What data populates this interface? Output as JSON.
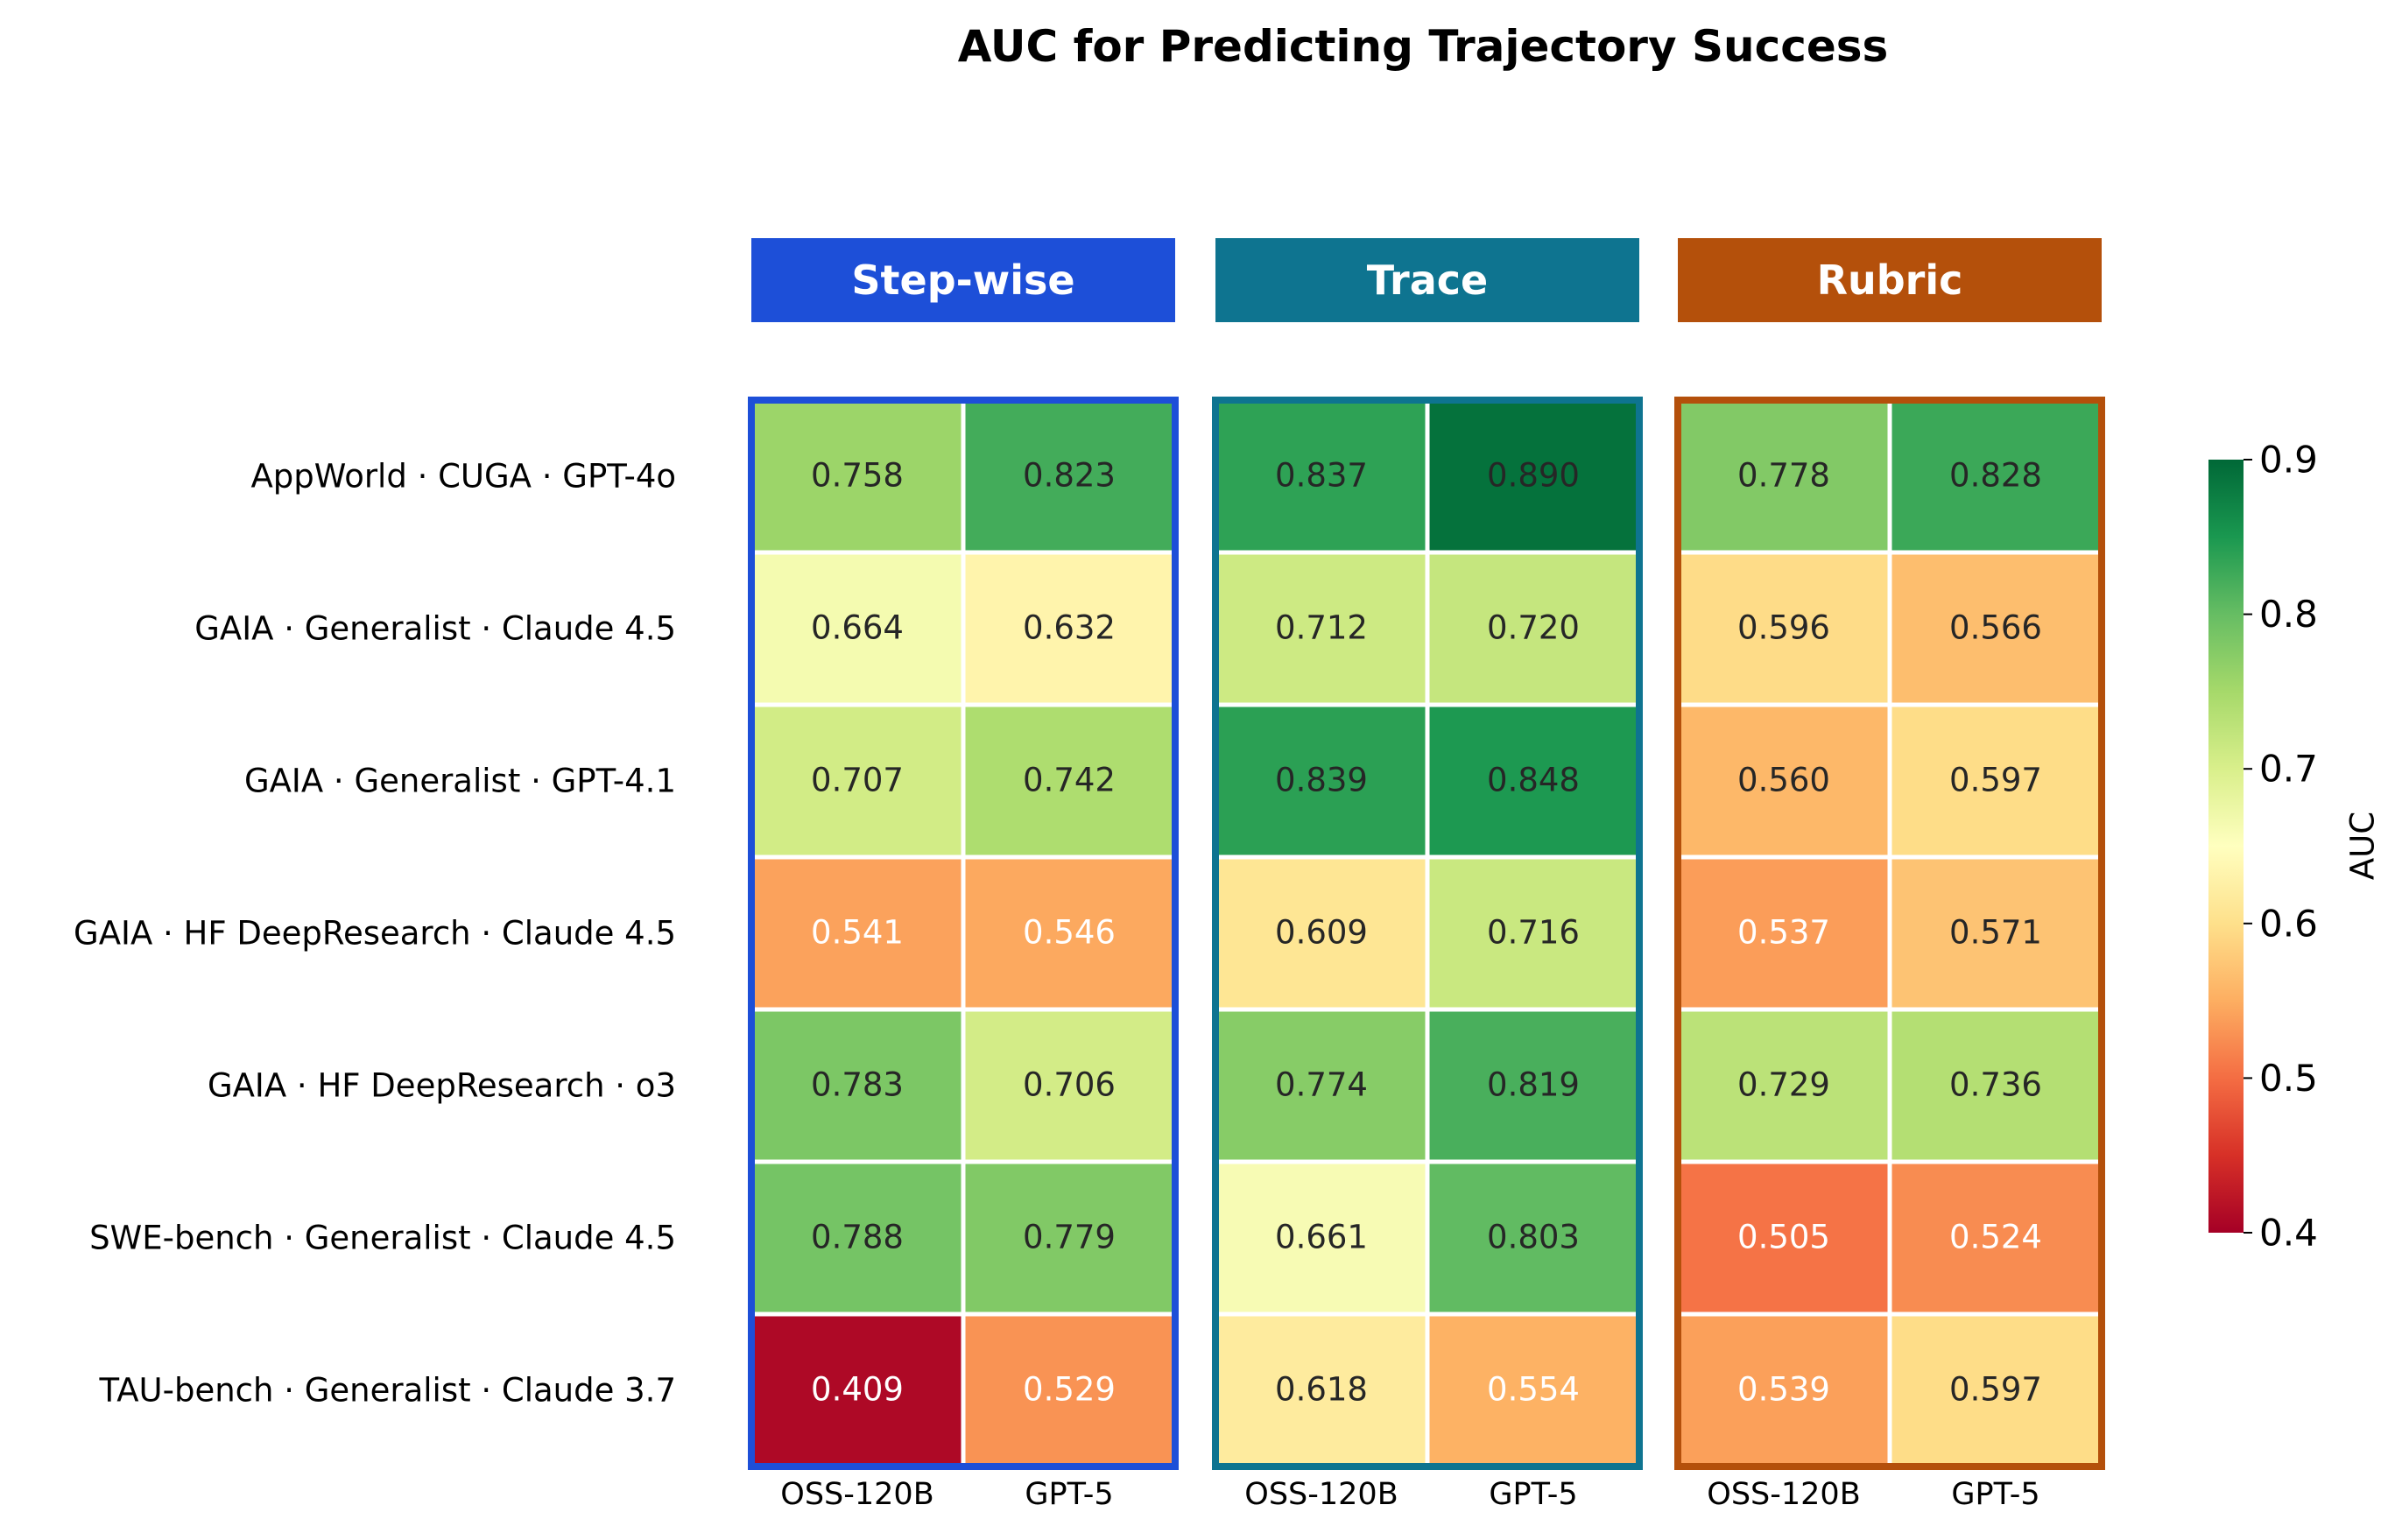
{
  "chart_data": {
    "type": "heatmap",
    "title": "AUC for Predicting Trajectory Success",
    "rows": [
      "AppWorld · CUGA · GPT-4o",
      "GAIA · Generalist · Claude 4.5",
      "GAIA · Generalist · GPT-4.1",
      "GAIA · HF DeepResearch · Claude 4.5",
      "GAIA · HF DeepResearch · o3",
      "SWE-bench · Generalist · Claude 4.5",
      "TAU-bench · Generalist · Claude 3.7"
    ],
    "groups": [
      {
        "name": "Step-wise",
        "color": "#1d4fd8",
        "columns": [
          "OSS-120B",
          "GPT-5"
        ],
        "values": [
          [
            0.758,
            0.823
          ],
          [
            0.664,
            0.632
          ],
          [
            0.707,
            0.742
          ],
          [
            0.541,
            0.546
          ],
          [
            0.783,
            0.706
          ],
          [
            0.788,
            0.779
          ],
          [
            0.409,
            0.529
          ]
        ]
      },
      {
        "name": "Trace",
        "color": "#0e7490",
        "columns": [
          "OSS-120B",
          "GPT-5"
        ],
        "values": [
          [
            0.837,
            0.89
          ],
          [
            0.712,
            0.72
          ],
          [
            0.839,
            0.848
          ],
          [
            0.609,
            0.716
          ],
          [
            0.774,
            0.819
          ],
          [
            0.661,
            0.803
          ],
          [
            0.618,
            0.554
          ]
        ]
      },
      {
        "name": "Rubric",
        "color": "#b4500b",
        "columns": [
          "OSS-120B",
          "GPT-5"
        ],
        "values": [
          [
            0.778,
            0.828
          ],
          [
            0.596,
            0.566
          ],
          [
            0.56,
            0.597
          ],
          [
            0.537,
            0.571
          ],
          [
            0.729,
            0.736
          ],
          [
            0.505,
            0.524
          ],
          [
            0.539,
            0.597
          ]
        ]
      }
    ],
    "colorbar": {
      "label": "AUC",
      "colormap": "RdYlGn",
      "vmin": 0.4,
      "vmax": 0.9,
      "ticks": [
        "0.4",
        "0.5",
        "0.6",
        "0.7",
        "0.8",
        "0.9"
      ]
    }
  }
}
